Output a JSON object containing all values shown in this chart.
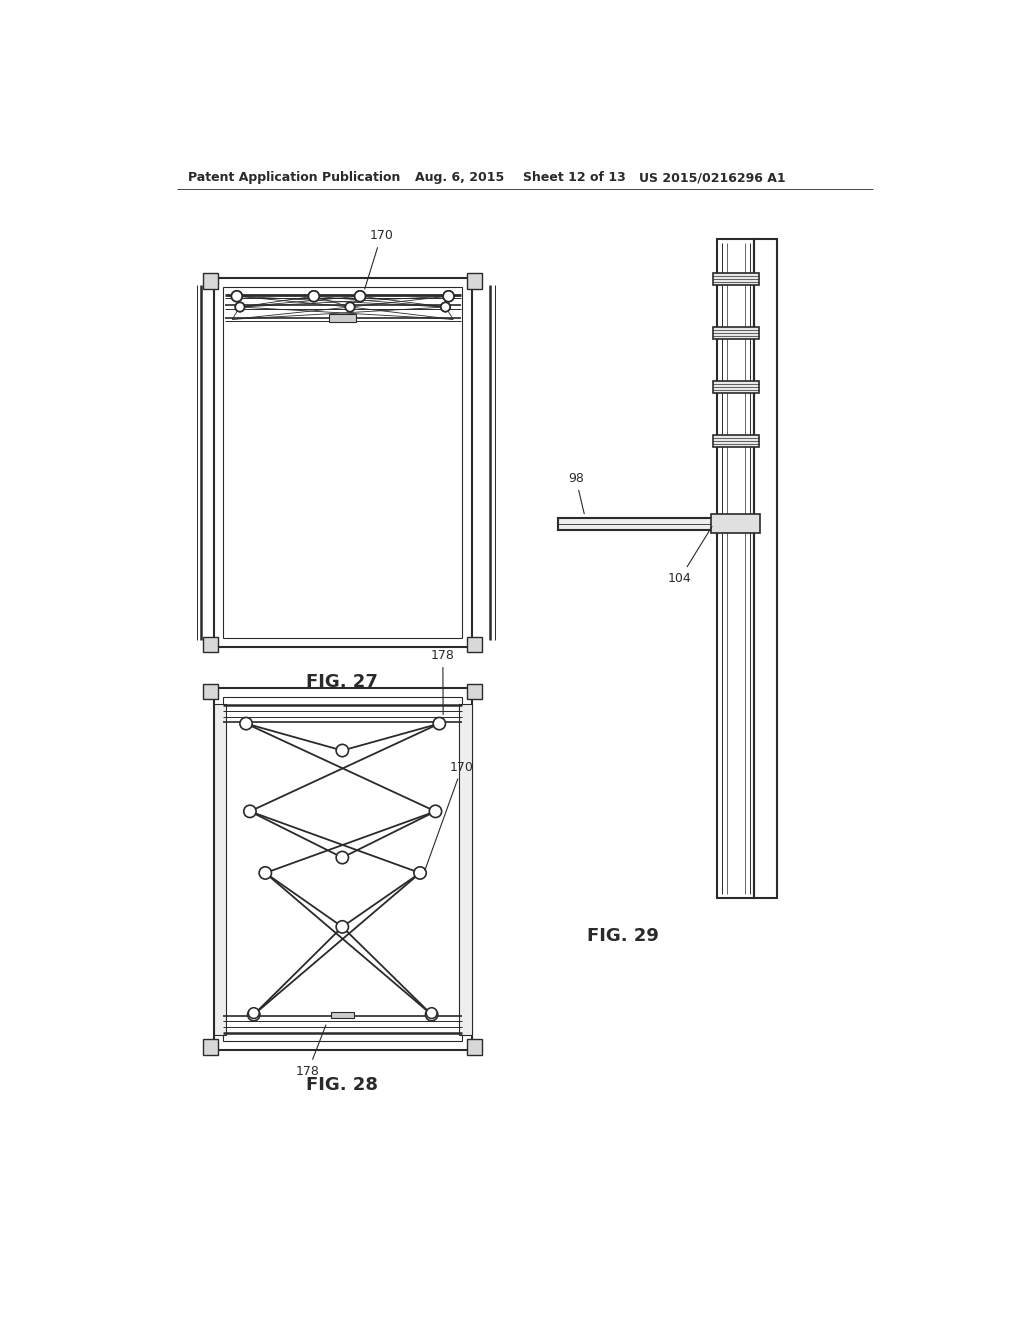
{
  "background_color": "#ffffff",
  "header_text": "Patent Application Publication",
  "header_date": "Aug. 6, 2015",
  "header_sheet": "Sheet 12 of 13",
  "header_patent": "US 2015/0216296 A1",
  "fig27_label": "FIG. 27",
  "fig28_label": "FIG. 28",
  "fig29_label": "FIG. 29",
  "line_color": "#2a2a2a",
  "font_size_header": 9,
  "font_size_fig": 12,
  "font_size_label": 9
}
